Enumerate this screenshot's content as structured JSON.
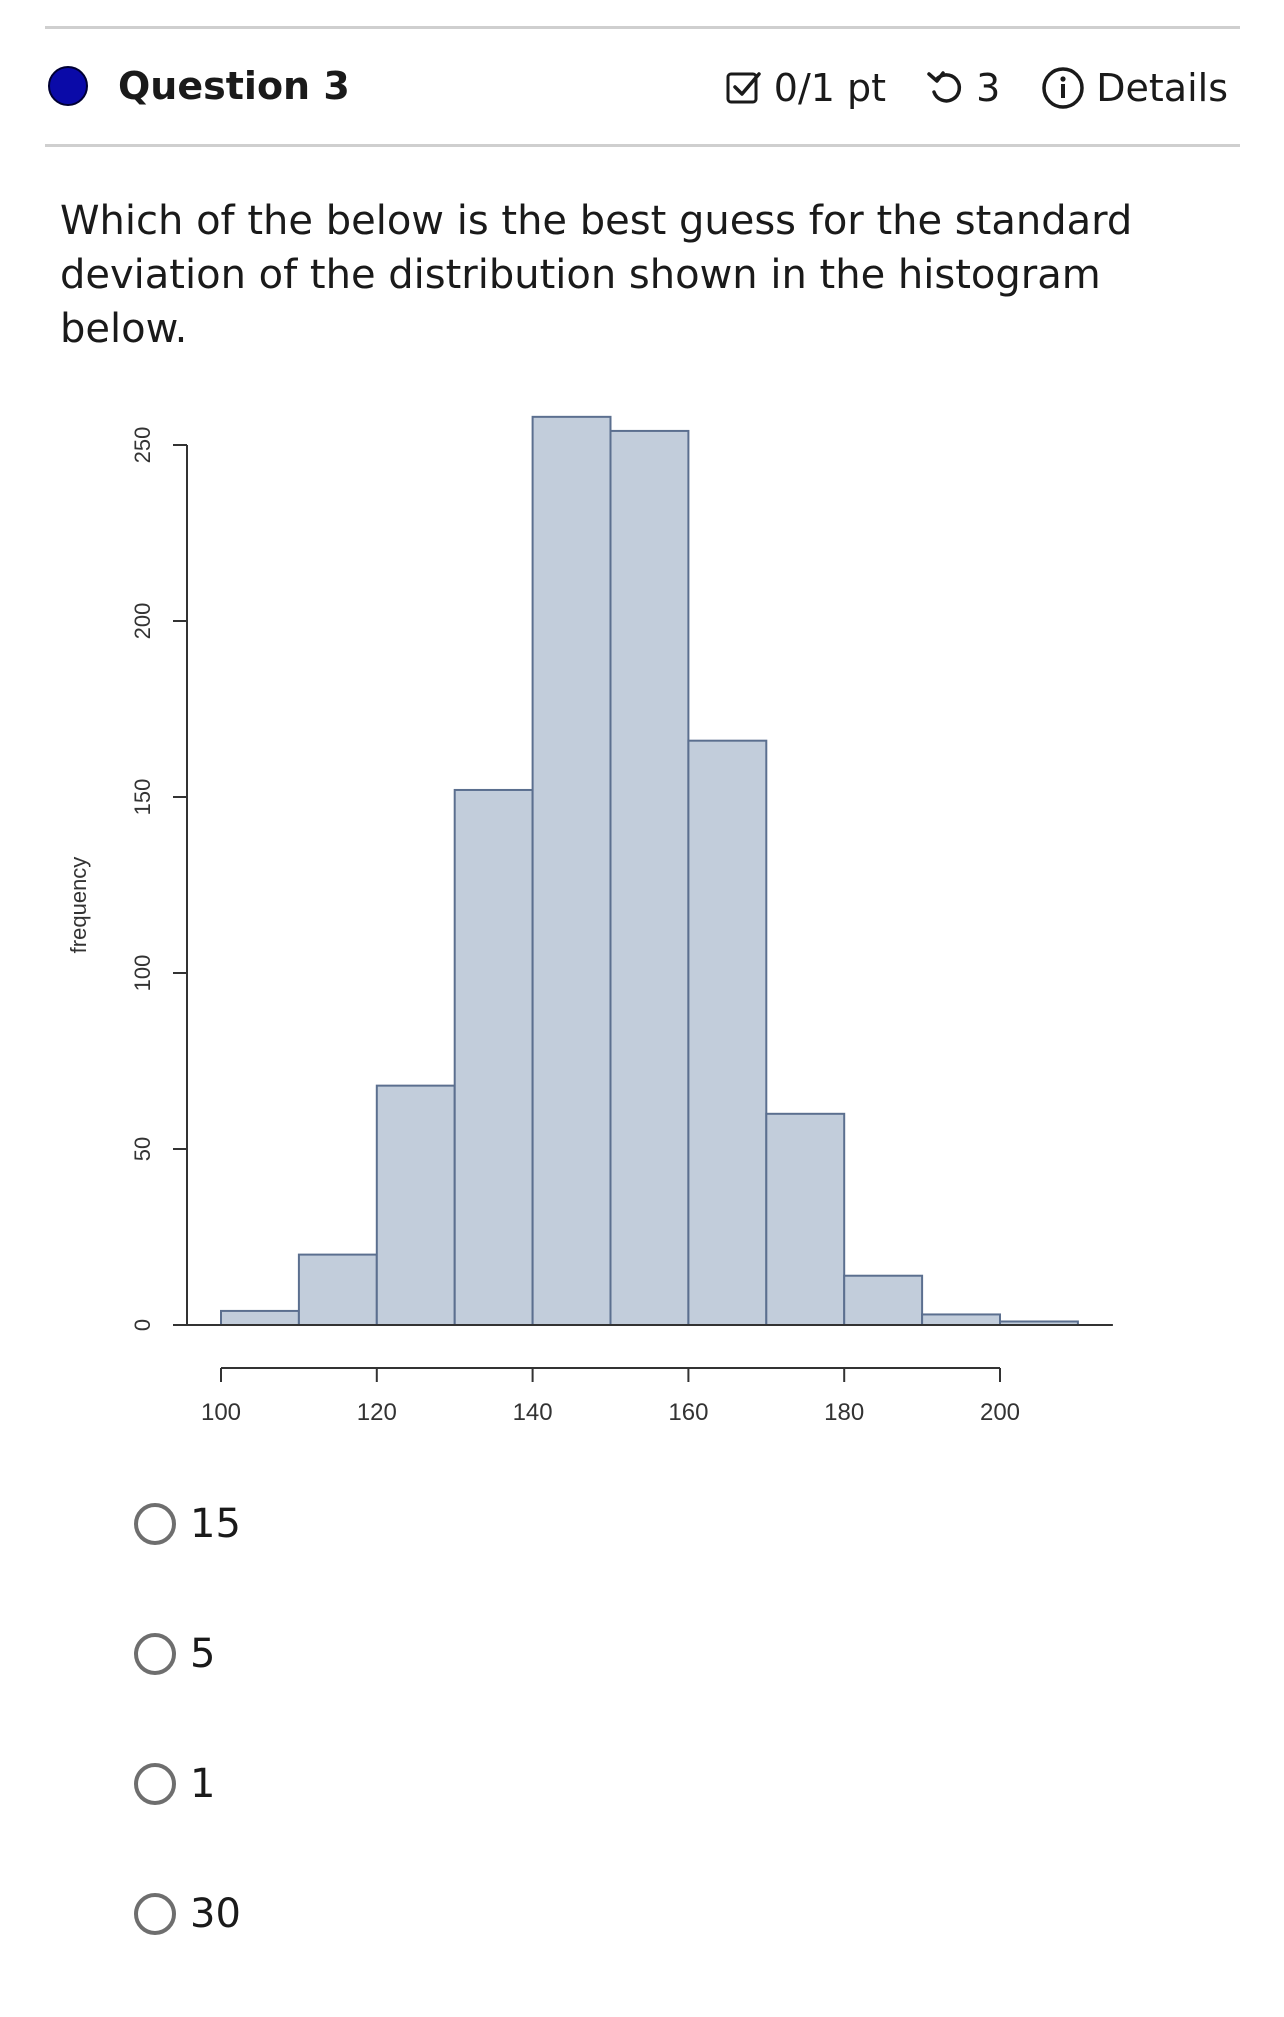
{
  "header": {
    "question_title": "Question 3",
    "score": "0/1 pt",
    "attempts": "3",
    "details_label": "Details",
    "status_dot_color": "#0a0aa8"
  },
  "question": {
    "text": "Which of the below is the best guess for the standard deviation of the distribution shown in the histogram below."
  },
  "chart_data": {
    "type": "bar",
    "bin_edges": [
      100,
      110,
      120,
      130,
      140,
      150,
      160,
      170,
      180,
      190,
      200,
      210
    ],
    "values": [
      4,
      20,
      68,
      152,
      258,
      254,
      166,
      60,
      14,
      3,
      1
    ],
    "xticks": [
      100,
      120,
      140,
      160,
      180,
      200
    ],
    "yticks": [
      0,
      50,
      100,
      150,
      200,
      250
    ],
    "xlim": [
      100,
      200
    ],
    "ylim": [
      0,
      250
    ],
    "xlabel": "",
    "ylabel": "frequency",
    "bar_fill": "#c2cddb",
    "bar_stroke": "#5b6f8f"
  },
  "answers": {
    "options": [
      "15",
      "5",
      "1",
      "30"
    ]
  }
}
